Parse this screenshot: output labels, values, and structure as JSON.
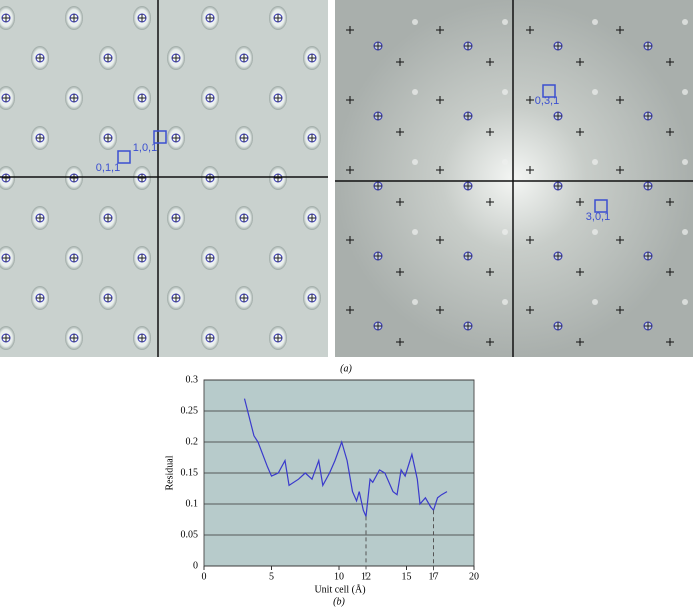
{
  "panel_a": {
    "label": "(a)",
    "left_labels": [
      "1,0,1",
      "0,1,1"
    ],
    "right_labels": [
      "0,3,1",
      "3,0,1"
    ]
  },
  "chart_data": {
    "type": "line",
    "panel_label": "(b)",
    "x_label": "Unit cell (Å)",
    "y_label": "Residual",
    "x": [
      3,
      3.7,
      4,
      4.7,
      5,
      5.5,
      6,
      6.3,
      7,
      7.5,
      8,
      8.5,
      8.8,
      9.3,
      9.7,
      10.2,
      10.6,
      11,
      11.3,
      11.5,
      11.8,
      12,
      12.3,
      12.5,
      13,
      13.4,
      14,
      14.3,
      14.6,
      14.9,
      15.4,
      15.8,
      16,
      16.4,
      16.8,
      17,
      17.3,
      17.6,
      18
    ],
    "values": [
      0.27,
      0.21,
      0.2,
      0.16,
      0.145,
      0.15,
      0.17,
      0.13,
      0.14,
      0.15,
      0.14,
      0.17,
      0.13,
      0.15,
      0.17,
      0.2,
      0.17,
      0.12,
      0.105,
      0.12,
      0.09,
      0.08,
      0.14,
      0.135,
      0.155,
      0.15,
      0.12,
      0.115,
      0.155,
      0.145,
      0.18,
      0.14,
      0.1,
      0.11,
      0.095,
      0.09,
      0.11,
      0.115,
      0.12
    ],
    "color": "#3a3acc",
    "xlim": [
      0,
      20
    ],
    "xticks": [
      0,
      5,
      10,
      15,
      20
    ],
    "ylim": [
      0,
      0.3
    ],
    "yticks": [
      0,
      0.05,
      0.1,
      0.15,
      0.2,
      0.25,
      0.3
    ],
    "markers": [
      12,
      17
    ],
    "grid": true
  }
}
